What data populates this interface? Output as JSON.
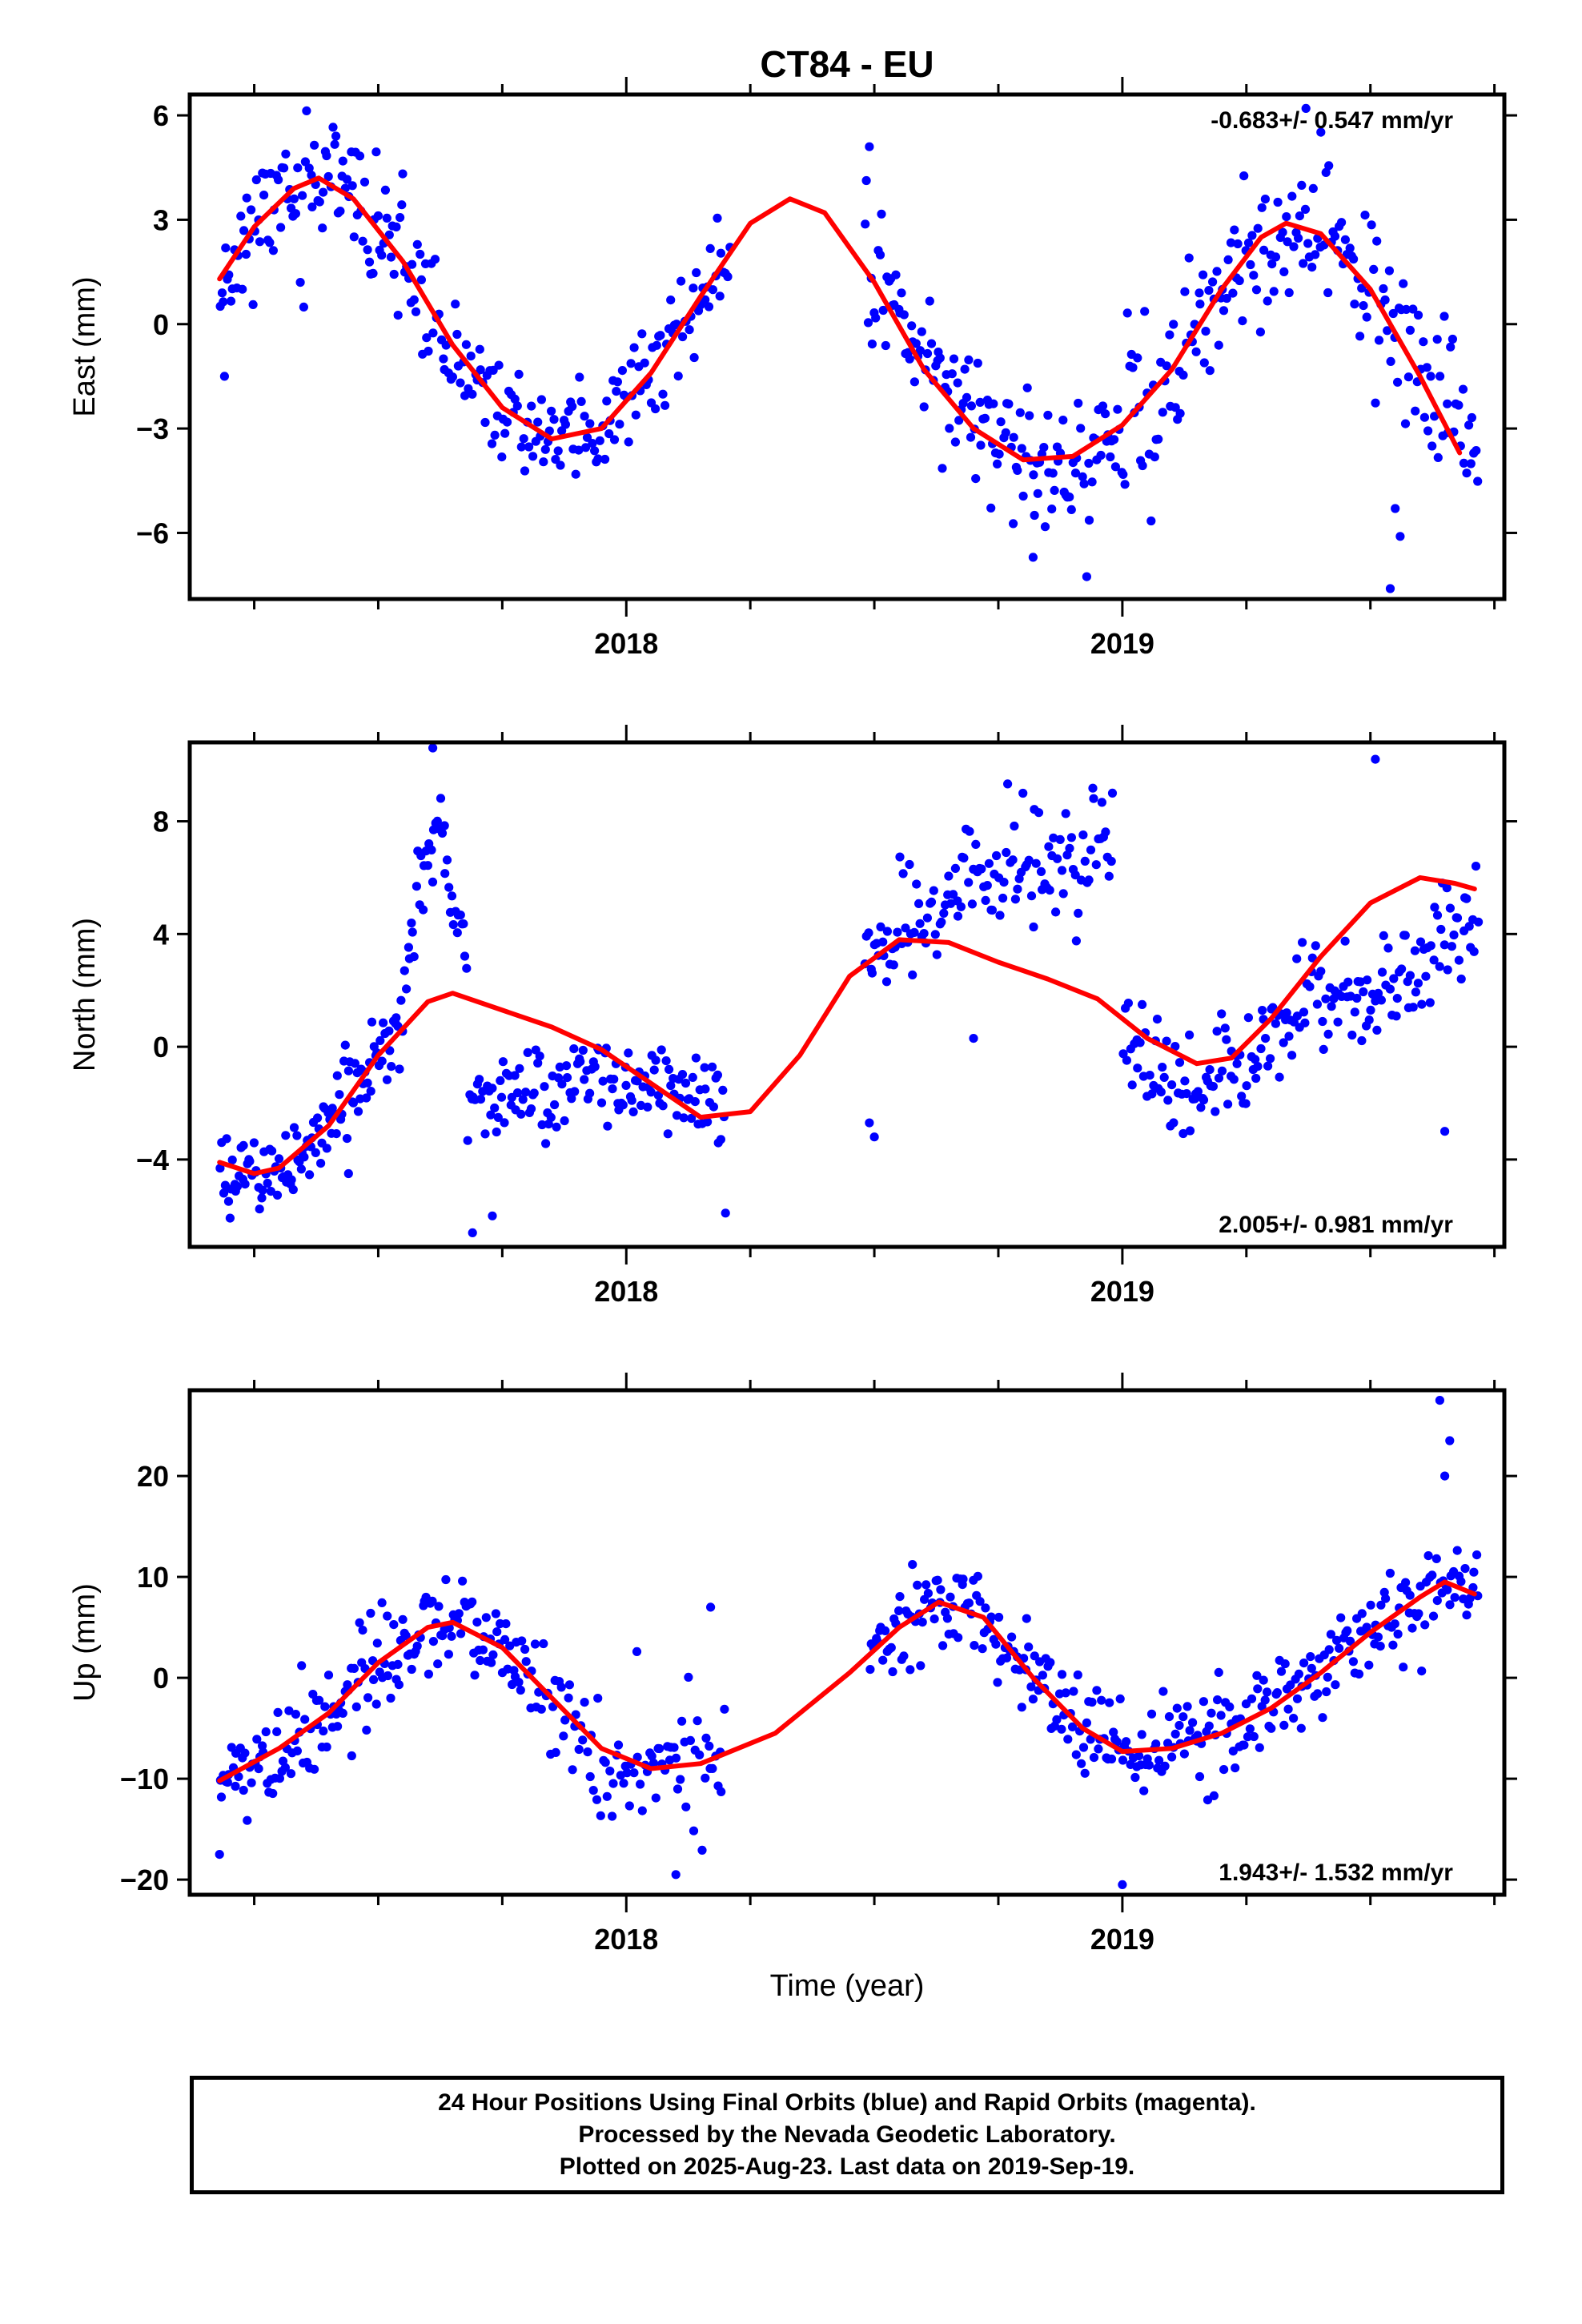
{
  "chart_data": {
    "title": "CT84 - EU",
    "type": "scatter",
    "xlabel": "Time (year)",
    "xlim": [
      2017.12,
      2019.77
    ],
    "x_tick_labels": [
      "2018",
      "2019"
    ],
    "point_color": "#0000ff",
    "fit_color": "#ff0000",
    "panels": [
      {
        "ylabel": "East (mm)",
        "ylim": [
          -7.9,
          6.6
        ],
        "yticks": [
          6,
          3,
          0,
          -3,
          -6
        ],
        "ytick_labels": [
          "6",
          "3",
          "0",
          "−3",
          "−6"
        ],
        "rate_label": "-0.683+/- 0.547 mm/yr",
        "rate_position": "top-right",
        "fit_curve": {
          "x": [
            2017.18,
            2017.25,
            2017.33,
            2017.38,
            2017.45,
            2017.55,
            2017.65,
            2017.75,
            2017.85,
            2017.95,
            2018.05,
            2018.15,
            2018.25,
            2018.33,
            2018.4,
            2018.5,
            2018.6,
            2018.7,
            2018.8,
            2018.9,
            2019.0,
            2019.1,
            2019.2,
            2019.28,
            2019.33,
            2019.4,
            2019.5,
            2019.6,
            2019.68
          ],
          "y": [
            1.3,
            2.8,
            3.9,
            4.2,
            3.6,
            1.8,
            -0.6,
            -2.4,
            -3.3,
            -3.0,
            -1.4,
            0.8,
            2.9,
            3.6,
            3.2,
            1.2,
            -1.3,
            -3.0,
            -3.9,
            -3.8,
            -2.9,
            -1.3,
            1.0,
            2.5,
            2.9,
            2.6,
            1.0,
            -1.5,
            -3.7
          ]
        },
        "segments": [
          {
            "start": 2017.18,
            "end": 2017.6,
            "curve": [
              [
                2017.18,
                1.3
              ],
              [
                2017.25,
                2.8
              ],
              [
                2017.33,
                3.9
              ],
              [
                2017.38,
                4.2
              ],
              [
                2017.45,
                3.6
              ],
              [
                2017.55,
                1.8
              ],
              [
                2017.6,
                0.6
              ]
            ],
            "spread": 1.1,
            "n": 115,
            "seed": 11
          },
          {
            "start": 2017.6,
            "end": 2018.21,
            "curve": [
              [
                2017.6,
                0.6
              ],
              [
                2017.65,
                -0.6
              ],
              [
                2017.75,
                -2.4
              ],
              [
                2017.85,
                -3.3
              ],
              [
                2017.95,
                -3.0
              ],
              [
                2018.05,
                -1.4
              ],
              [
                2018.15,
                0.8
              ],
              [
                2018.21,
                2.0
              ]
            ],
            "spread": 0.8,
            "n": 150,
            "seed": 12
          },
          {
            "start": 2018.48,
            "end": 2019.0,
            "curve": [
              [
                2018.48,
                1.6
              ],
              [
                2018.6,
                -1.3
              ],
              [
                2018.7,
                -3.0
              ],
              [
                2018.8,
                -3.9
              ],
              [
                2018.9,
                -3.8
              ],
              [
                2019.0,
                -2.9
              ]
            ],
            "spread": 1.2,
            "n": 140,
            "seed": 13
          },
          {
            "start": 2019.0,
            "end": 2019.72,
            "curve": [
              [
                2019.0,
                -2.9
              ],
              [
                2019.1,
                -1.3
              ],
              [
                2019.2,
                1.0
              ],
              [
                2019.28,
                2.5
              ],
              [
                2019.33,
                2.9
              ],
              [
                2019.4,
                2.6
              ],
              [
                2019.5,
                1.0
              ],
              [
                2019.6,
                -1.5
              ],
              [
                2019.72,
                -3.7
              ]
            ],
            "spread": 1.3,
            "n": 180,
            "seed": 14
          }
        ],
        "outliers": [
          [
            2017.19,
            -1.5
          ],
          [
            2018.49,
            5.1
          ],
          [
            2019.54,
            -7.6
          ],
          [
            2019.55,
            -5.3
          ],
          [
            2019.56,
            -6.1
          ],
          [
            2018.82,
            -6.7
          ],
          [
            2019.37,
            6.2
          ]
        ]
      },
      {
        "ylabel": "North (mm)",
        "ylim": [
          -7.1,
          10.8
        ],
        "yticks": [
          8,
          4,
          0,
          -4
        ],
        "ytick_labels": [
          "8",
          "4",
          "0",
          "−4"
        ],
        "rate_label": "2.005+/- 0.981 mm/yr",
        "rate_position": "bottom-right",
        "fit_curve": {
          "x": [
            2017.18,
            2017.25,
            2017.3,
            2017.4,
            2017.5,
            2017.6,
            2017.65,
            2017.75,
            2017.85,
            2017.95,
            2018.05,
            2018.15,
            2018.25,
            2018.35,
            2018.45,
            2018.55,
            2018.65,
            2018.75,
            2018.85,
            2018.95,
            2019.05,
            2019.15,
            2019.22,
            2019.3,
            2019.4,
            2019.5,
            2019.6,
            2019.67,
            2019.71
          ],
          "y": [
            -4.1,
            -4.5,
            -4.3,
            -2.8,
            -0.3,
            1.6,
            1.9,
            1.3,
            0.7,
            -0.1,
            -1.3,
            -2.5,
            -2.3,
            -0.3,
            2.5,
            3.8,
            3.7,
            3.0,
            2.4,
            1.7,
            0.3,
            -0.6,
            -0.4,
            1.0,
            3.2,
            5.1,
            6.0,
            5.8,
            5.6
          ]
        },
        "segments": [
          {
            "start": 2017.18,
            "end": 2017.5,
            "curve": [
              [
                2017.18,
                -4.1
              ],
              [
                2017.25,
                -4.5
              ],
              [
                2017.3,
                -4.3
              ],
              [
                2017.4,
                -2.8
              ],
              [
                2017.5,
                -0.3
              ]
            ],
            "spread": 0.9,
            "n": 100,
            "seed": 21
          },
          {
            "start": 2017.5,
            "end": 2017.68,
            "curve": [
              [
                2017.5,
                -1.0
              ],
              [
                2017.56,
                3.0
              ],
              [
                2017.6,
                7.5
              ],
              [
                2017.63,
                8.0
              ],
              [
                2017.66,
                4.0
              ],
              [
                2017.68,
                2.0
              ]
            ],
            "spread": 1.0,
            "n": 55,
            "seed": 22
          },
          {
            "start": 2017.68,
            "end": 2018.2,
            "curve": [
              [
                2017.68,
                -2.0
              ],
              [
                2017.85,
                -1.5
              ],
              [
                2018.0,
                -1.2
              ],
              [
                2018.1,
                -1.3
              ],
              [
                2018.2,
                -2.0
              ]
            ],
            "spread": 1.0,
            "n": 140,
            "seed": 23
          },
          {
            "start": 2018.48,
            "end": 2018.98,
            "curve": [
              [
                2018.48,
                3.0
              ],
              [
                2018.6,
                4.8
              ],
              [
                2018.7,
                6.0
              ],
              [
                2018.85,
                6.2
              ],
              [
                2018.98,
                6.8
              ]
            ],
            "spread": 1.2,
            "n": 130,
            "seed": 24
          },
          {
            "start": 2019.0,
            "end": 2019.72,
            "curve": [
              [
                2019.0,
                0.3
              ],
              [
                2019.1,
                -1.7
              ],
              [
                2019.2,
                -1.2
              ],
              [
                2019.3,
                0.8
              ],
              [
                2019.4,
                1.6
              ],
              [
                2019.5,
                1.5
              ],
              [
                2019.6,
                2.8
              ],
              [
                2019.72,
                5.0
              ]
            ],
            "spread": 1.1,
            "n": 190,
            "seed": 25
          }
        ],
        "outliers": [
          [
            2017.61,
            10.6
          ],
          [
            2017.69,
            -6.6
          ],
          [
            2018.2,
            -5.9
          ],
          [
            2018.49,
            -2.7
          ],
          [
            2018.5,
            -3.2
          ],
          [
            2019.51,
            10.2
          ],
          [
            2018.98,
            9.0
          ],
          [
            2018.7,
            0.3
          ],
          [
            2017.44,
            -4.5
          ],
          [
            2017.73,
            -6.0
          ],
          [
            2019.65,
            -3.0
          ]
        ]
      },
      {
        "ylabel": "Up (mm)",
        "ylim": [
          -21.5,
          28.5
        ],
        "yticks": [
          20,
          10,
          0,
          -10,
          -20
        ],
        "ytick_labels": [
          "20",
          "10",
          "0",
          "−10",
          "−20"
        ],
        "rate_label": "1.943+/- 1.532 mm/yr",
        "rate_position": "bottom-right",
        "fit_curve": {
          "x": [
            2017.18,
            2017.3,
            2017.4,
            2017.5,
            2017.6,
            2017.65,
            2017.75,
            2017.85,
            2017.95,
            2018.05,
            2018.15,
            2018.3,
            2018.45,
            2018.55,
            2018.63,
            2018.72,
            2018.82,
            2018.92,
            2019.0,
            2019.1,
            2019.2,
            2019.3,
            2019.4,
            2019.5,
            2019.6,
            2019.65,
            2019.71
          ],
          "y": [
            -10.2,
            -7.0,
            -3.5,
            1.5,
            5.0,
            5.5,
            3.0,
            -2.0,
            -7.0,
            -9.0,
            -8.5,
            -5.5,
            0.5,
            5.0,
            7.5,
            6.0,
            0.0,
            -5.0,
            -7.3,
            -7.0,
            -5.5,
            -3.0,
            0.5,
            4.5,
            8.0,
            9.5,
            8.3
          ]
        },
        "segments": [
          {
            "start": 2017.18,
            "end": 2017.8,
            "curve": [
              [
                2017.18,
                -10.2
              ],
              [
                2017.3,
                -7.0
              ],
              [
                2017.4,
                -3.5
              ],
              [
                2017.5,
                1.5
              ],
              [
                2017.6,
                5.0
              ],
              [
                2017.65,
                5.5
              ],
              [
                2017.75,
                3.0
              ],
              [
                2017.8,
                0.5
              ]
            ],
            "spread": 2.7,
            "n": 170,
            "seed": 31
          },
          {
            "start": 2017.8,
            "end": 2018.2,
            "curve": [
              [
                2017.8,
                0.5
              ],
              [
                2017.85,
                -2.0
              ],
              [
                2017.95,
                -7.0
              ],
              [
                2018.05,
                -9.0
              ],
              [
                2018.15,
                -8.5
              ],
              [
                2018.2,
                -7.5
              ]
            ],
            "spread": 3.5,
            "n": 90,
            "seed": 32
          },
          {
            "start": 2018.49,
            "end": 2018.98,
            "curve": [
              [
                2018.49,
                2.0
              ],
              [
                2018.55,
                5.0
              ],
              [
                2018.63,
                7.5
              ],
              [
                2018.72,
                6.0
              ],
              [
                2018.82,
                0.0
              ],
              [
                2018.92,
                -5.0
              ],
              [
                2018.98,
                -6.5
              ]
            ],
            "spread": 2.6,
            "n": 130,
            "seed": 33
          },
          {
            "start": 2018.98,
            "end": 2019.72,
            "curve": [
              [
                2018.98,
                -6.5
              ],
              [
                2019.0,
                -7.3
              ],
              [
                2019.1,
                -7.0
              ],
              [
                2019.2,
                -5.5
              ],
              [
                2019.3,
                -3.0
              ],
              [
                2019.4,
                0.5
              ],
              [
                2019.5,
                4.5
              ],
              [
                2019.6,
                8.0
              ],
              [
                2019.65,
                9.5
              ],
              [
                2019.72,
                8.3
              ]
            ],
            "spread": 3.0,
            "n": 190,
            "seed": 34
          }
        ],
        "outliers": [
          [
            2019.64,
            27.5
          ],
          [
            2019.66,
            23.5
          ],
          [
            2019.0,
            -20.5
          ],
          [
            2018.1,
            -19.5
          ],
          [
            2017.18,
            -17.5
          ],
          [
            2019.65,
            20.0
          ],
          [
            2018.17,
            7.0
          ]
        ]
      }
    ]
  },
  "footer": {
    "line1": "24 Hour Positions Using Final Orbits (blue) and Rapid Orbits (magenta).",
    "line2": "Processed by the Nevada Geodetic Laboratory.",
    "line3": "Plotted on 2025-Aug-23. Last data on 2019-Sep-19."
  }
}
